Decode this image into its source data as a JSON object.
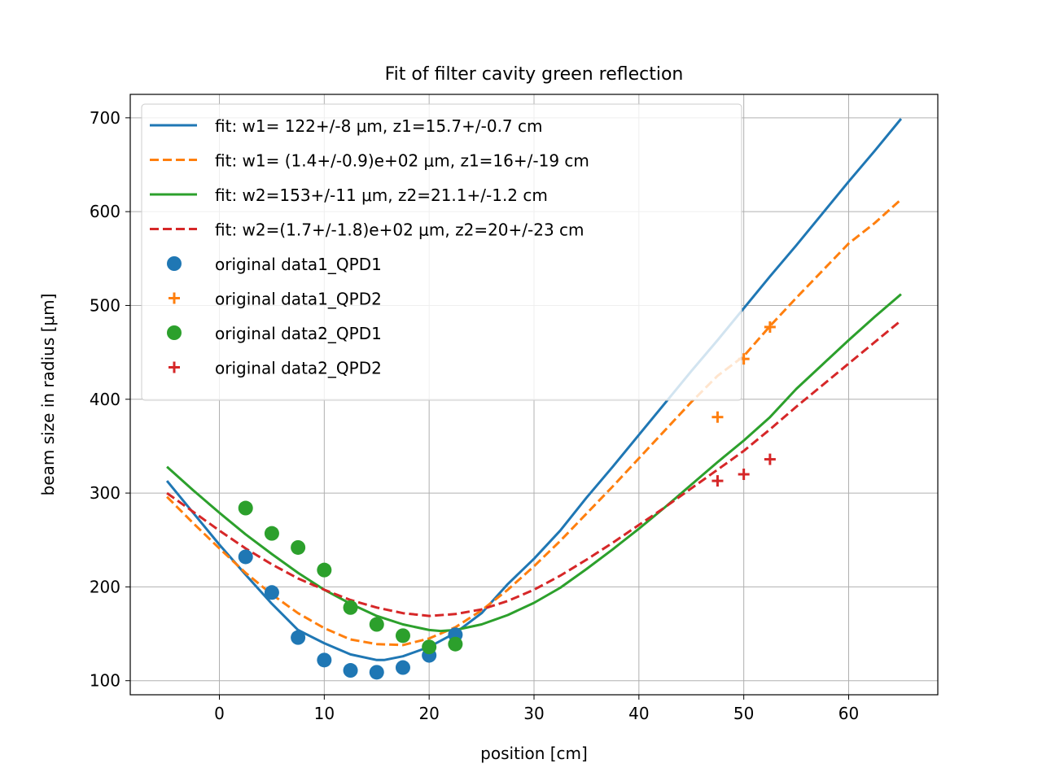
{
  "chart_data": {
    "type": "scatter",
    "title": "Fit of filter cavity green reflection",
    "xlabel": "position [cm]",
    "ylabel": "beam size in radius [μm]",
    "xlim": [
      -8.5,
      68.5
    ],
    "ylim": [
      85,
      725
    ],
    "x_ticks": [
      0,
      10,
      20,
      30,
      40,
      50,
      60
    ],
    "y_ticks": [
      100,
      200,
      300,
      400,
      500,
      600,
      700
    ],
    "grid": true,
    "legend_position": "upper-left",
    "series": [
      {
        "name": "fit: w1= 122+/-8 μm, z1=15.7+/-0.7 cm",
        "kind": "line",
        "style": "solid",
        "color": "#1f77b4",
        "x": [
          -5,
          -2.5,
          0,
          2.5,
          5,
          7.5,
          10,
          12.5,
          15,
          15.7,
          17.5,
          20,
          22.5,
          25,
          27.5,
          30,
          32.5,
          35,
          37.5,
          40,
          42.5,
          45,
          47.5,
          50,
          52.5,
          55,
          57.5,
          60,
          62.5,
          65
        ],
        "y": [
          313,
          279,
          245,
          213,
          182,
          154,
          140,
          128,
          122,
          122,
          126,
          136,
          151,
          172,
          203,
          230,
          260,
          295,
          328,
          362,
          396,
          430,
          463,
          497,
          531,
          564,
          598,
          632,
          665,
          699
        ]
      },
      {
        "name": "fit: w1= (1.4+/-0.9)e+02 μm, z1=16+/-19 cm",
        "kind": "line",
        "style": "dashed",
        "color": "#ff7f0e",
        "x": [
          -5,
          -2.5,
          0,
          2.5,
          5,
          7.5,
          10,
          12.5,
          15,
          17.5,
          20,
          22.5,
          25,
          27.5,
          30,
          32.5,
          35,
          37.5,
          40,
          42.5,
          45,
          47.5,
          50,
          52.5,
          55,
          57.5,
          60,
          62.5,
          65
        ],
        "y": [
          296,
          268,
          241,
          215,
          192,
          172,
          156,
          144,
          139,
          138,
          145,
          157,
          175,
          197,
          222,
          249,
          278,
          307,
          337,
          367,
          397,
          425,
          446,
          478,
          508,
          537,
          566,
          588,
          613
        ]
      },
      {
        "name": "fit: w2=153+/-11 μm, z2=21.1+/-1.2 cm",
        "kind": "line",
        "style": "solid",
        "color": "#2ca02c",
        "x": [
          -5,
          -2.5,
          0,
          2.5,
          5,
          7.5,
          10,
          12.5,
          15,
          17.5,
          20,
          21.1,
          22.5,
          25,
          27.5,
          30,
          32.5,
          35,
          37.5,
          40,
          42.5,
          45,
          47.5,
          50,
          52.5,
          55,
          57.5,
          60,
          62.5,
          65
        ],
        "y": [
          328,
          303,
          279,
          256,
          235,
          215,
          197,
          182,
          169,
          160,
          154,
          153,
          154,
          160,
          170,
          183,
          199,
          219,
          240,
          262,
          285,
          309,
          333,
          356,
          381,
          411,
          437,
          463,
          488,
          512
        ]
      },
      {
        "name": "fit: w2=(1.7+/-1.8)e+02 μm, z2=20+/-23 cm",
        "kind": "line",
        "style": "dashed",
        "color": "#d62728",
        "x": [
          -5,
          -2.5,
          0,
          2.5,
          5,
          7.5,
          10,
          12.5,
          15,
          17.5,
          20,
          22.5,
          25,
          27.5,
          30,
          32.5,
          35,
          37.5,
          40,
          42.5,
          45,
          47.5,
          50,
          52.5,
          55,
          57.5,
          60,
          62.5,
          65
        ],
        "y": [
          300,
          280,
          260,
          241,
          224,
          209,
          197,
          186,
          178,
          172,
          169,
          171,
          176,
          185,
          197,
          212,
          229,
          247,
          266,
          285,
          305,
          325,
          345,
          368,
          392,
          415,
          438,
          461,
          484
        ]
      },
      {
        "name": "original data1_QPD1",
        "kind": "scatter",
        "marker": "circle",
        "color": "#1f77b4",
        "x": [
          2.5,
          5,
          7.5,
          10,
          12.5,
          15,
          17.5,
          20,
          22.5
        ],
        "y": [
          232,
          194,
          146,
          122,
          111,
          109,
          114,
          127,
          149
        ]
      },
      {
        "name": "original data1_QPD2",
        "kind": "scatter",
        "marker": "plus",
        "color": "#ff7f0e",
        "x": [
          47.5,
          50,
          52.5
        ],
        "y": [
          381,
          443,
          477
        ]
      },
      {
        "name": "original data2_QPD1",
        "kind": "scatter",
        "marker": "circle",
        "color": "#2ca02c",
        "x": [
          2.5,
          5,
          7.5,
          10,
          12.5,
          15,
          17.5,
          20,
          22.5
        ],
        "y": [
          284,
          257,
          242,
          218,
          178,
          160,
          148,
          136,
          139
        ]
      },
      {
        "name": "original data2_QPD2",
        "kind": "scatter",
        "marker": "plus",
        "color": "#d62728",
        "x": [
          47.5,
          50,
          52.5
        ],
        "y": [
          313,
          320,
          336
        ]
      }
    ]
  }
}
